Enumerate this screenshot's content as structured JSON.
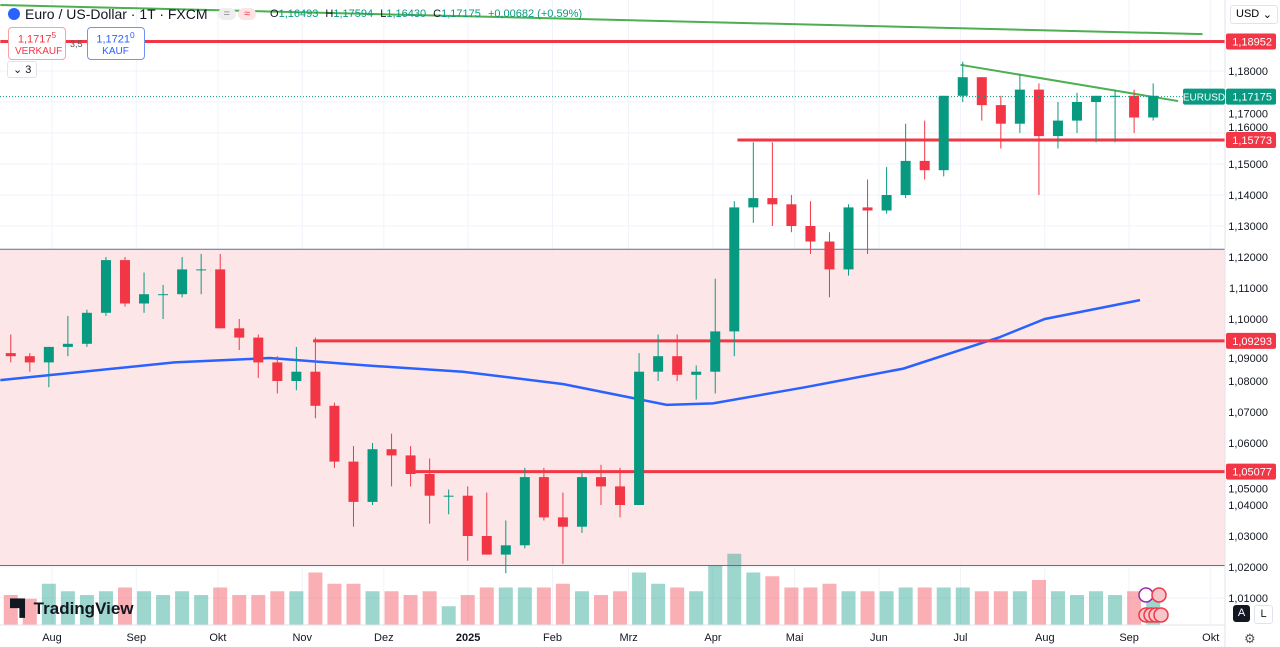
{
  "header": {
    "title": "Euro / US-Dollar · 1T · FXCM",
    "pill1": "=",
    "pill2": "≈",
    "ohlc": [
      {
        "k": "O",
        "v": "1,16493"
      },
      {
        "k": "H",
        "v": "1,17594"
      },
      {
        "k": "L",
        "v": "1,16430"
      },
      {
        "k": "C",
        "v": "1,17175"
      }
    ],
    "change": "+0,00682 (+0,59%)"
  },
  "trade": {
    "sell_price": "1,1717",
    "sell_pip": "5",
    "sell_label": "VERKAUF",
    "spread": "3,5",
    "buy_price": "1,1721",
    "buy_pip": "0",
    "buy_label": "KAUF"
  },
  "indicators_toggle": "3",
  "currency": "USD",
  "logo": "TradingView",
  "scale_buttons": {
    "auto": "A",
    "log": "L"
  },
  "colors": {
    "up": "#089981",
    "down": "#f23645",
    "ma": "#2962ff",
    "trend": "#4caf50",
    "level": "#f23645",
    "zone": "#fde3e6"
  },
  "icons": [
    "tradingview-logo",
    "settings-icon",
    "chevron-down-icon",
    "flash-event-icon",
    "us-flag-event-icon"
  ],
  "chart_data": {
    "type": "candlestick",
    "symbol": "EURUSD",
    "timeframe": "1T",
    "ylim": [
      1.005,
      1.2
    ],
    "price_ticks": [
      "1,18000",
      "1,17000",
      "1,16000",
      "1,15000",
      "1,14000",
      "1,13000",
      "1,12000",
      "1,11000",
      "1,10000",
      "1,09000",
      "1,08000",
      "1,07000",
      "1,06000",
      "1,05000",
      "1,04000",
      "1,03000",
      "1,02000",
      "1,01000"
    ],
    "time_ticks": [
      {
        "label": "Aug",
        "date": "2024-08-01"
      },
      {
        "label": "Sep",
        "date": "2024-09-01"
      },
      {
        "label": "Okt",
        "date": "2024-10-01"
      },
      {
        "label": "Nov",
        "date": "2024-11-01"
      },
      {
        "label": "Dez",
        "date": "2024-12-01"
      },
      {
        "label": "2025",
        "date": "2025-01-01"
      },
      {
        "label": "Feb",
        "date": "2025-02-01"
      },
      {
        "label": "Mrz",
        "date": "2025-03-01"
      },
      {
        "label": "Apr",
        "date": "2025-04-01"
      },
      {
        "label": "Mai",
        "date": "2025-05-01"
      },
      {
        "label": "Jun",
        "date": "2025-06-01"
      },
      {
        "label": "Jul",
        "date": "2025-07-01"
      },
      {
        "label": "Aug",
        "date": "2025-08-01"
      },
      {
        "label": "Sep",
        "date": "2025-09-01"
      },
      {
        "label": "Okt",
        "date": "2025-10-01"
      }
    ],
    "candles": [
      [
        "2024-07-15",
        1.089,
        1.095,
        1.086,
        1.088,
        40
      ],
      [
        "2024-07-22",
        1.088,
        1.089,
        1.083,
        1.086,
        35
      ],
      [
        "2024-07-29",
        1.086,
        1.091,
        1.078,
        1.091,
        55
      ],
      [
        "2024-08-05",
        1.091,
        1.101,
        1.088,
        1.092,
        45
      ],
      [
        "2024-08-12",
        1.092,
        1.103,
        1.091,
        1.102,
        40
      ],
      [
        "2024-08-19",
        1.102,
        1.12,
        1.101,
        1.119,
        45
      ],
      [
        "2024-08-26",
        1.119,
        1.12,
        1.104,
        1.105,
        50
      ],
      [
        "2024-09-02",
        1.105,
        1.115,
        1.102,
        1.108,
        45
      ],
      [
        "2024-09-09",
        1.108,
        1.111,
        1.1,
        1.108,
        40
      ],
      [
        "2024-09-16",
        1.108,
        1.12,
        1.107,
        1.116,
        45
      ],
      [
        "2024-09-23",
        1.116,
        1.121,
        1.108,
        1.116,
        40
      ],
      [
        "2024-09-30",
        1.116,
        1.121,
        1.097,
        1.097,
        50
      ],
      [
        "2024-10-07",
        1.097,
        1.1,
        1.09,
        1.094,
        40
      ],
      [
        "2024-10-14",
        1.094,
        1.095,
        1.081,
        1.086,
        40
      ],
      [
        "2024-10-21",
        1.086,
        1.088,
        1.076,
        1.08,
        45
      ],
      [
        "2024-10-28",
        1.08,
        1.091,
        1.077,
        1.083,
        45
      ],
      [
        "2024-11-04",
        1.083,
        1.094,
        1.068,
        1.072,
        70
      ],
      [
        "2024-11-11",
        1.072,
        1.073,
        1.052,
        1.054,
        55
      ],
      [
        "2024-11-18",
        1.054,
        1.059,
        1.033,
        1.041,
        55
      ],
      [
        "2024-11-25",
        1.041,
        1.06,
        1.04,
        1.058,
        45
      ],
      [
        "2024-12-02",
        1.058,
        1.063,
        1.046,
        1.056,
        45
      ],
      [
        "2024-12-09",
        1.056,
        1.059,
        1.046,
        1.05,
        40
      ],
      [
        "2024-12-16",
        1.05,
        1.055,
        1.034,
        1.043,
        45
      ],
      [
        "2024-12-23",
        1.043,
        1.045,
        1.037,
        1.043,
        25
      ],
      [
        "2024-12-30",
        1.043,
        1.046,
        1.022,
        1.03,
        40
      ],
      [
        "2025-01-06",
        1.03,
        1.044,
        1.024,
        1.024,
        50
      ],
      [
        "2025-01-13",
        1.024,
        1.035,
        1.018,
        1.027,
        50
      ],
      [
        "2025-01-20",
        1.027,
        1.052,
        1.026,
        1.049,
        50
      ],
      [
        "2025-01-27",
        1.049,
        1.052,
        1.035,
        1.036,
        50
      ],
      [
        "2025-02-03",
        1.036,
        1.044,
        1.021,
        1.033,
        55
      ],
      [
        "2025-02-10",
        1.033,
        1.051,
        1.031,
        1.049,
        45
      ],
      [
        "2025-02-17",
        1.049,
        1.053,
        1.04,
        1.046,
        40
      ],
      [
        "2025-02-24",
        1.046,
        1.052,
        1.036,
        1.04,
        45
      ],
      [
        "2025-03-03",
        1.04,
        1.089,
        1.04,
        1.083,
        70
      ],
      [
        "2025-03-10",
        1.083,
        1.095,
        1.08,
        1.088,
        55
      ],
      [
        "2025-03-17",
        1.088,
        1.095,
        1.08,
        1.082,
        50
      ],
      [
        "2025-03-24",
        1.082,
        1.085,
        1.074,
        1.083,
        45
      ],
      [
        "2025-03-31",
        1.083,
        1.113,
        1.076,
        1.096,
        80
      ],
      [
        "2025-04-07",
        1.096,
        1.138,
        1.088,
        1.136,
        95
      ],
      [
        "2025-04-14",
        1.136,
        1.157,
        1.131,
        1.139,
        70
      ],
      [
        "2025-04-21",
        1.139,
        1.157,
        1.13,
        1.137,
        65
      ],
      [
        "2025-04-28",
        1.137,
        1.14,
        1.128,
        1.13,
        50
      ],
      [
        "2025-05-05",
        1.13,
        1.138,
        1.121,
        1.125,
        50
      ],
      [
        "2025-05-12",
        1.125,
        1.128,
        1.107,
        1.116,
        55
      ],
      [
        "2025-05-19",
        1.116,
        1.137,
        1.114,
        1.136,
        45
      ],
      [
        "2025-05-26",
        1.136,
        1.145,
        1.121,
        1.135,
        45
      ],
      [
        "2025-06-02",
        1.135,
        1.149,
        1.134,
        1.14,
        45
      ],
      [
        "2025-06-09",
        1.14,
        1.163,
        1.139,
        1.151,
        50
      ],
      [
        "2025-06-16",
        1.151,
        1.164,
        1.145,
        1.148,
        50
      ],
      [
        "2025-06-23",
        1.148,
        1.172,
        1.146,
        1.172,
        50
      ],
      [
        "2025-06-30",
        1.172,
        1.183,
        1.17,
        1.178,
        50
      ],
      [
        "2025-07-07",
        1.178,
        1.178,
        1.164,
        1.169,
        45
      ],
      [
        "2025-07-14",
        1.169,
        1.172,
        1.155,
        1.163,
        45
      ],
      [
        "2025-07-21",
        1.163,
        1.179,
        1.16,
        1.174,
        45
      ],
      [
        "2025-07-28",
        1.174,
        1.176,
        1.14,
        1.159,
        60
      ],
      [
        "2025-08-04",
        1.159,
        1.17,
        1.155,
        1.164,
        45
      ],
      [
        "2025-08-11",
        1.164,
        1.173,
        1.16,
        1.17,
        40
      ],
      [
        "2025-08-18",
        1.17,
        1.172,
        1.157,
        1.172,
        45
      ],
      [
        "2025-08-25",
        1.172,
        1.174,
        1.157,
        1.172,
        40
      ],
      [
        "2025-09-01",
        1.172,
        1.174,
        1.16,
        1.165,
        45
      ],
      [
        "2025-09-08",
        1.165,
        1.176,
        1.164,
        1.172,
        40
      ]
    ],
    "moving_average": [
      [
        "2024-07-13",
        1.0803
      ],
      [
        "2024-09-15",
        1.086
      ],
      [
        "2024-10-20",
        1.0874
      ],
      [
        "2024-11-25",
        1.085
      ],
      [
        "2024-12-30",
        1.083
      ],
      [
        "2025-02-05",
        1.079
      ],
      [
        "2025-03-15",
        1.0723
      ],
      [
        "2025-04-01",
        1.0728
      ],
      [
        "2025-05-05",
        1.078
      ],
      [
        "2025-06-10",
        1.084
      ],
      [
        "2025-07-15",
        1.094
      ],
      [
        "2025-08-01",
        1.1
      ],
      [
        "2025-09-05",
        1.1061
      ]
    ],
    "levels": [
      {
        "price": 1.18952,
        "label": "1,18952",
        "from": "2024-07-13"
      },
      {
        "price": 1.15773,
        "label": "1,15773",
        "from": "2025-04-10"
      },
      {
        "price": 1.09293,
        "label": "1,09293",
        "from": "2024-11-05"
      },
      {
        "price": 1.05077,
        "label": "1,05077",
        "from": "2024-12-10"
      }
    ],
    "zone": {
      "top": 1.1225,
      "bottom": 1.0205
    },
    "trendlines": [
      {
        "from": [
          "2024-07-13",
          1.2013
        ],
        "to": [
          "2025-09-28",
          1.1919
        ]
      },
      {
        "from": [
          "2025-07-01",
          1.182
        ],
        "to": [
          "2025-09-19",
          1.1703
        ]
      }
    ],
    "last_price": {
      "symbol": "EURUSD",
      "label": "1,17175",
      "price": 1.17175
    }
  }
}
